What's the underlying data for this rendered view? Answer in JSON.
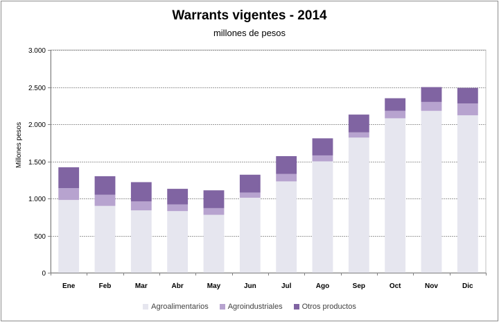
{
  "chart_data": {
    "type": "bar",
    "stacked": true,
    "title": "Warrants vigentes - 2014",
    "subtitle": "millones de pesos",
    "xlabel": "",
    "ylabel": "Millones pesos",
    "ylim": [
      0,
      3000
    ],
    "yticks": [
      0,
      500,
      1000,
      1500,
      2000,
      2500,
      3000
    ],
    "ytick_labels": [
      "0",
      "500",
      "1.000",
      "1.500",
      "2.000",
      "2.500",
      "3.000"
    ],
    "grid": true,
    "legend_position": "bottom",
    "categories": [
      "Ene",
      "Feb",
      "Mar",
      "Abr",
      "May",
      "Jun",
      "Jul",
      "Ago",
      "Sep",
      "Oct",
      "Nov",
      "Dic"
    ],
    "series": [
      {
        "name": "Agroalimentarios",
        "color": "#e6e6ef",
        "values": [
          980,
          900,
          840,
          830,
          780,
          1010,
          1230,
          1500,
          1820,
          2080,
          2180,
          2120
        ]
      },
      {
        "name": "Agroindustriales",
        "color": "#b7a3cf",
        "values": [
          160,
          150,
          120,
          90,
          90,
          70,
          100,
          80,
          70,
          100,
          120,
          160
        ]
      },
      {
        "name": "Otros productos",
        "color": "#8064a2",
        "values": [
          280,
          250,
          260,
          210,
          240,
          240,
          240,
          230,
          240,
          170,
          200,
          210
        ]
      }
    ]
  }
}
